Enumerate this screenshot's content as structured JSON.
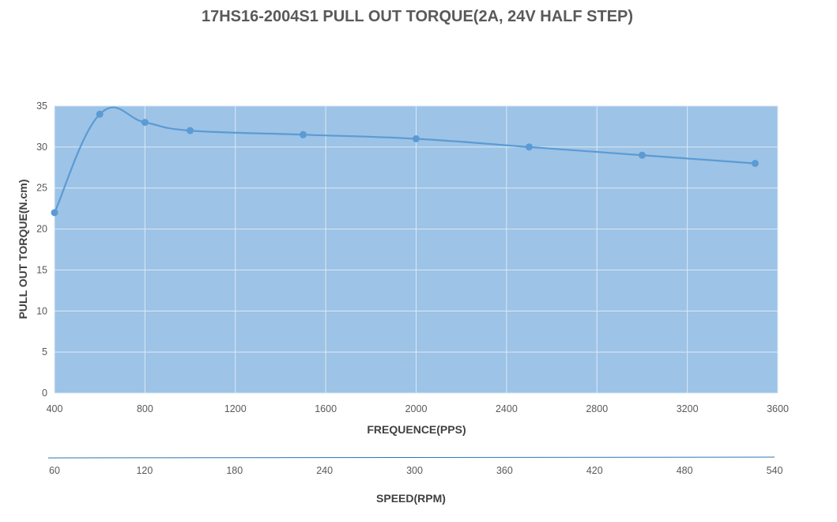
{
  "chart_data": {
    "type": "line",
    "title": "17HS16-2004S1 PULL OUT TORQUE(2A, 24V HALF STEP)",
    "xlabel": "FREQUENCE(PPS)",
    "ylabel": "PULL OUT TORQUE(N.cm)",
    "x2label": "SPEED(RPM)",
    "xlim": [
      400,
      3600
    ],
    "ylim": [
      0,
      35
    ],
    "xticks": [
      "400",
      "800",
      "1200",
      "1600",
      "2000",
      "2400",
      "2800",
      "3200",
      "3600"
    ],
    "yticks": [
      "0",
      "5",
      "10",
      "15",
      "20",
      "25",
      "30",
      "35"
    ],
    "x2ticks": [
      "60",
      "120",
      "180",
      "240",
      "300",
      "360",
      "420",
      "480",
      "540"
    ],
    "grid": true,
    "legend": "none",
    "series": [
      {
        "x": [
          400,
          600,
          800,
          1000,
          1500,
          2000,
          2500,
          3000,
          3500
        ],
        "y": [
          22,
          34,
          33,
          32,
          31.5,
          31,
          30,
          29,
          28
        ]
      }
    ],
    "colors": {
      "plot_bg": "#9dc3e6",
      "grid": "#dce9f5",
      "line": "#5b9bd5",
      "marker": "#5b9bd5",
      "secondary_axis": "#2e75b6"
    }
  }
}
